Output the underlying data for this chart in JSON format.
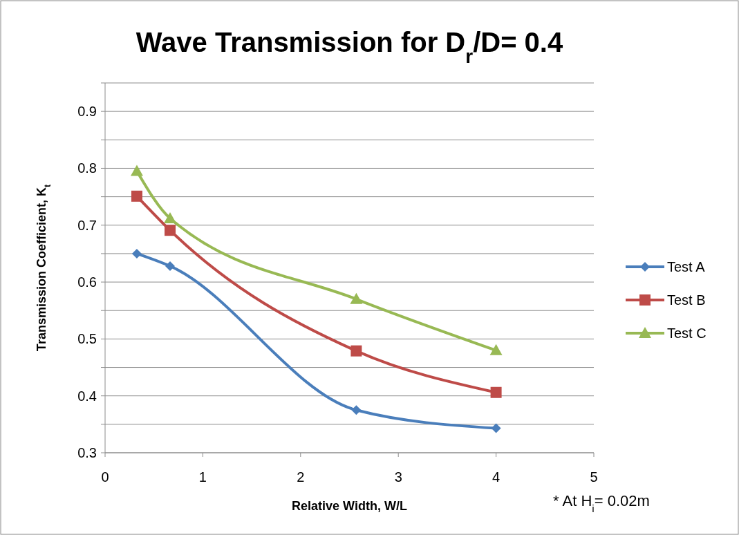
{
  "chart_data": {
    "type": "line",
    "title": "Wave Transmission for D$_{r}$/D= 0.4",
    "xlabel": "Relative Width, W/L",
    "ylabel": "Transmission Coefficient, K$_{t}$",
    "annotations": [
      "* At H$_{i}$= 0.02m"
    ],
    "xlim": [
      0,
      5
    ],
    "xticks": [
      0,
      1,
      2,
      3,
      4,
      5
    ],
    "ylim": [
      0.3,
      0.95
    ],
    "yticks": [
      0.3,
      {
        "value": 0.35,
        "label": null
      },
      0.4,
      {
        "value": 0.45,
        "label": null
      },
      0.5,
      {
        "value": 0.55,
        "label": null
      },
      0.6,
      {
        "value": 0.65,
        "label": null
      },
      0.7,
      {
        "value": 0.75,
        "label": null
      },
      0.8,
      {
        "value": 0.85,
        "label": null
      },
      0.9,
      {
        "value": 0.95,
        "label": null
      }
    ],
    "grid": "y",
    "legend": "right",
    "line_style": "solid",
    "series": [
      {
        "name": "Test A",
        "color": "#4a7ebb",
        "marker": "diamond",
        "x": [
          0.325,
          0.665,
          2.57,
          4.0
        ],
        "values": [
          0.65,
          0.628,
          0.375,
          0.343
        ]
      },
      {
        "name": "Test B",
        "color": "#be4b48",
        "marker": "square",
        "x": [
          0.325,
          0.665,
          2.57,
          4.0
        ],
        "values": [
          0.751,
          0.691,
          0.479,
          0.406
        ]
      },
      {
        "name": "Test C",
        "color": "#98b954",
        "marker": "triangle",
        "x": [
          0.325,
          0.665,
          2.57,
          4.0
        ],
        "values": [
          0.795,
          0.712,
          0.57,
          0.48
        ]
      }
    ]
  }
}
